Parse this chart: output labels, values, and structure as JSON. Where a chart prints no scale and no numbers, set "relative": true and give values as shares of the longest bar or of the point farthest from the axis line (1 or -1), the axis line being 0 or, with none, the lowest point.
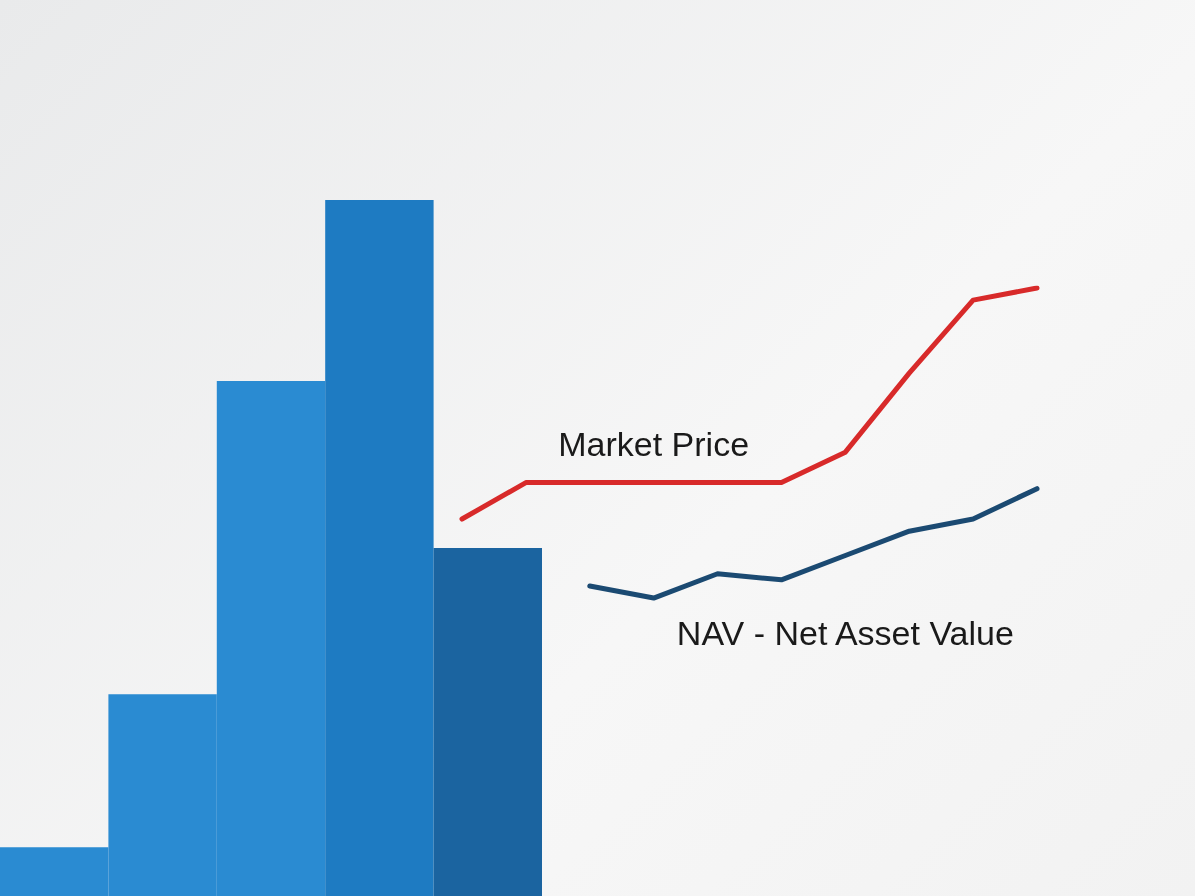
{
  "chart_data": [
    {
      "type": "bar",
      "relative": true,
      "grid": false,
      "legend": false,
      "categories": [
        null,
        null,
        null,
        null,
        null
      ],
      "values": [
        0.07,
        0.29,
        0.74,
        1,
        0.5
      ],
      "colors": [
        "#2a8bd2",
        "#2a8bd2",
        "#2a8bd2",
        "#1e7bc2",
        "#1b64a0"
      ]
    },
    {
      "type": "line",
      "relative": true,
      "grid": false,
      "legend": false,
      "marker": "none",
      "line_style": "solid",
      "categories": [
        null,
        null,
        null,
        null,
        null,
        null,
        null,
        null,
        null,
        null
      ],
      "series": [
        {
          "name": "Market Price",
          "color": "#d82a2a",
          "values": [
            0.62,
            0.68,
            0.68,
            0.68,
            0.68,
            0.68,
            0.73,
            0.86,
            0.98,
            1
          ]
        },
        {
          "name": "NAV - Net Asset Value",
          "color": "#1b4a72",
          "values": [
            null,
            null,
            0.51,
            0.49,
            0.53,
            0.52,
            0.56,
            0.6,
            0.62,
            0.67
          ]
        }
      ]
    }
  ]
}
